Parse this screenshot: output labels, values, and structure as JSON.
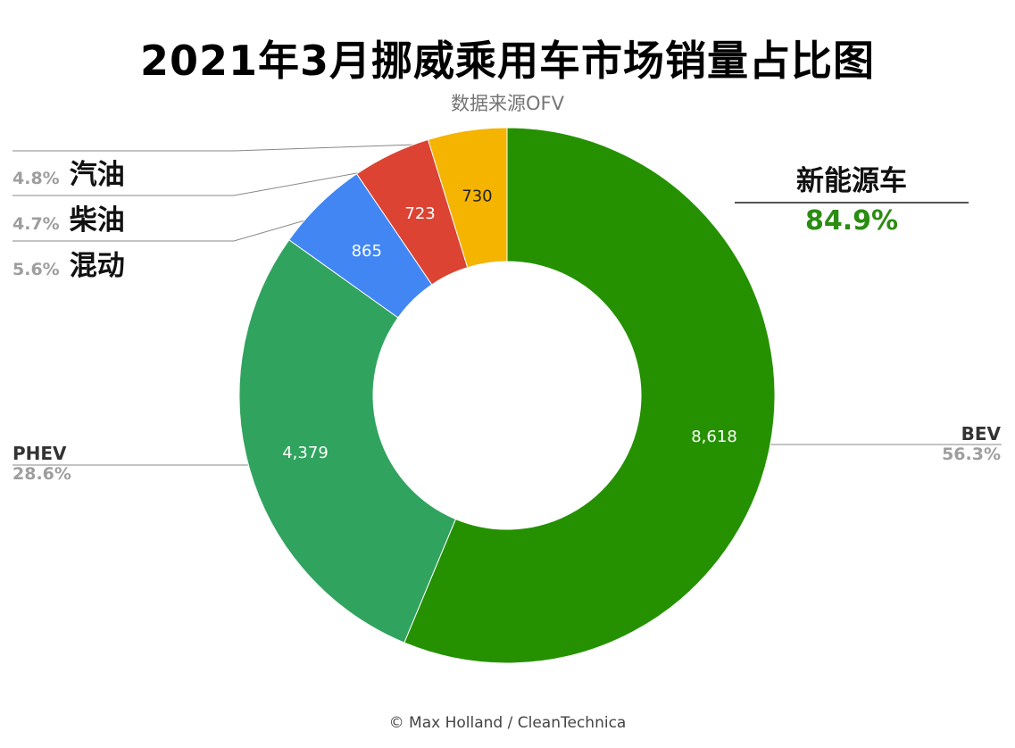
{
  "header": {
    "title": "2021年3月挪威乘用车市场销量占比图",
    "subtitle": "数据来源OFV"
  },
  "footer": {
    "credit": "© Max Holland / CleanTechnica"
  },
  "nev_summary": {
    "label": "新能源车",
    "percent": "84.9%"
  },
  "colors": {
    "bev": "#259100",
    "phev": "#30a35e",
    "hybrid": "#4286f4",
    "diesel": "#dc4333",
    "petrol": "#f4b400",
    "nev_text": "#2a8c12"
  },
  "chart_data": {
    "type": "pie",
    "donut": true,
    "slices": [
      {
        "name": "BEV",
        "value": 8618,
        "value_label": "8,618",
        "percent": "56.3%",
        "color": "#259100",
        "text_color": "#ffffff"
      },
      {
        "name": "PHEV",
        "value": 4379,
        "value_label": "4,379",
        "percent": "28.6%",
        "color": "#30a35e",
        "text_color": "#ffffff"
      },
      {
        "name": "混动",
        "value": 865,
        "value_label": "865",
        "percent": "5.6%",
        "color": "#4286f4",
        "text_color": "#ffffff"
      },
      {
        "name": "柴油",
        "value": 723,
        "value_label": "723",
        "percent": "4.7%",
        "color": "#dc4333",
        "text_color": "#ffffff"
      },
      {
        "name": "汽油",
        "value": 730,
        "value_label": "730",
        "percent": "4.8%",
        "color": "#f4b400",
        "text_color": "#222222"
      }
    ],
    "order": "clockwise from top"
  }
}
